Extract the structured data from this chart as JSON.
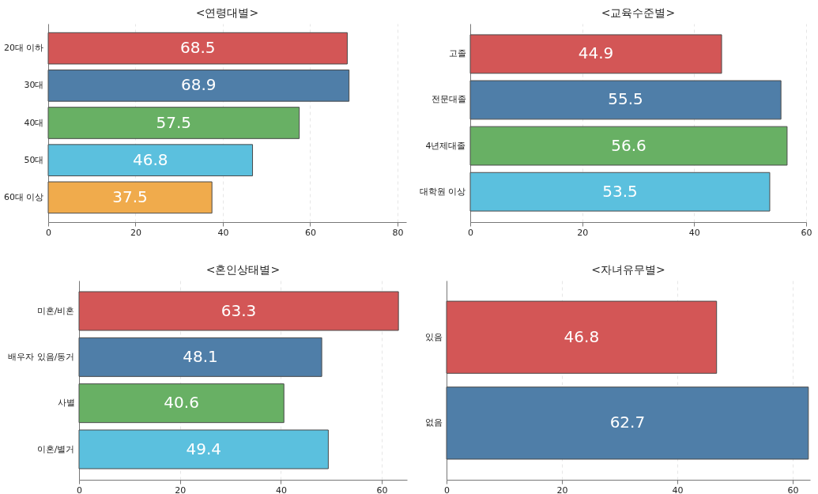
{
  "chart_data": [
    {
      "type": "bar",
      "orientation": "horizontal",
      "title": "<연령대별>",
      "categories": [
        "20대 이하",
        "30대",
        "40대",
        "50대",
        "60대 이상"
      ],
      "values": [
        68.5,
        68.9,
        57.5,
        46.8,
        37.5
      ],
      "colors": [
        "#d35656",
        "#4f7ea8",
        "#68b064",
        "#5bc0de",
        "#f0ab4c"
      ],
      "xlim": [
        0,
        82
      ],
      "xticks": [
        0,
        20,
        40,
        60,
        80
      ],
      "grid": "x",
      "data_labels": true
    },
    {
      "type": "bar",
      "orientation": "horizontal",
      "title": "<교육수준별>",
      "categories": [
        "고졸",
        "전문대졸",
        "4년제대졸",
        "대학원 이상"
      ],
      "values": [
        44.9,
        55.5,
        56.6,
        53.5
      ],
      "colors": [
        "#d35656",
        "#4f7ea8",
        "#68b064",
        "#5bc0de"
      ],
      "xlim": [
        0,
        60
      ],
      "xticks": [
        0,
        20,
        40,
        60
      ],
      "grid": "x",
      "data_labels": true
    },
    {
      "type": "bar",
      "orientation": "horizontal",
      "title": "<혼인상태별>",
      "categories": [
        "미혼/비혼",
        "배우자 있음/동거",
        "사별",
        "이혼/별거"
      ],
      "values": [
        63.3,
        48.1,
        40.6,
        49.4
      ],
      "colors": [
        "#d35656",
        "#4f7ea8",
        "#68b064",
        "#5bc0de"
      ],
      "xlim": [
        0,
        65
      ],
      "xticks": [
        0,
        20,
        40,
        60
      ],
      "grid": "x",
      "data_labels": true
    },
    {
      "type": "bar",
      "orientation": "horizontal",
      "title": "<자녀유무별>",
      "categories": [
        "있음",
        "없음"
      ],
      "values": [
        46.8,
        62.7
      ],
      "colors": [
        "#d35656",
        "#4f7ea8"
      ],
      "xlim": [
        0,
        63
      ],
      "xticks": [
        0,
        20,
        40,
        60
      ],
      "grid": "x",
      "data_labels": true
    }
  ]
}
